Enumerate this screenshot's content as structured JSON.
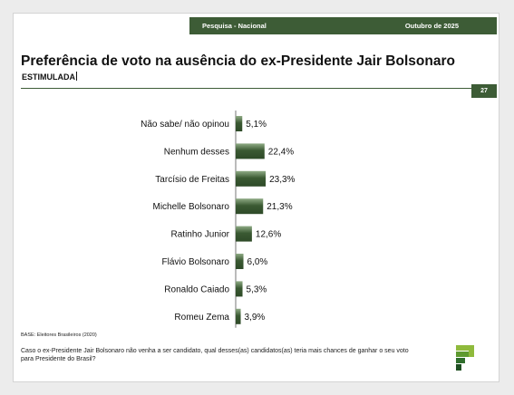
{
  "header": {
    "survey_label": "Pesquisa - Nacional",
    "date_label": "Outubro de 2025"
  },
  "title": "Preferência de voto na ausência do ex-Presidente Jair Bolsonaro",
  "subtitle": "ESTIMULADA",
  "page_number": "27",
  "base_note": "BASE: Eleitores Brasileiros (2020)",
  "question": "Caso o ex-Presidente Jair Bolsonaro não venha a ser candidato, qual desses(as) candidatos(as) teria mais chances de ganhar o seu voto para Presidente do Brasil?",
  "colors": {
    "brand_green": "#3d5c36",
    "bar_dark": "#3b5a33",
    "bar_light": "#8fab85"
  },
  "chart_data": {
    "type": "bar",
    "orientation": "horizontal",
    "categories": [
      "Não sabe/ não opinou",
      "Nenhum desses",
      "Tarcísio de Freitas",
      "Michelle Bolsonaro",
      "Ratinho Junior",
      "Flávio Bolsonaro",
      "Ronaldo Caiado",
      "Romeu Zema"
    ],
    "values": [
      5.1,
      22.4,
      23.3,
      21.3,
      12.6,
      6.0,
      5.3,
      3.9
    ],
    "value_labels": [
      "5,1%",
      "22,4%",
      "23,3%",
      "21,3%",
      "12,6%",
      "6,0%",
      "5,3%",
      "3,9%"
    ],
    "xlim": [
      0,
      100
    ],
    "grid": false,
    "legend": false
  }
}
